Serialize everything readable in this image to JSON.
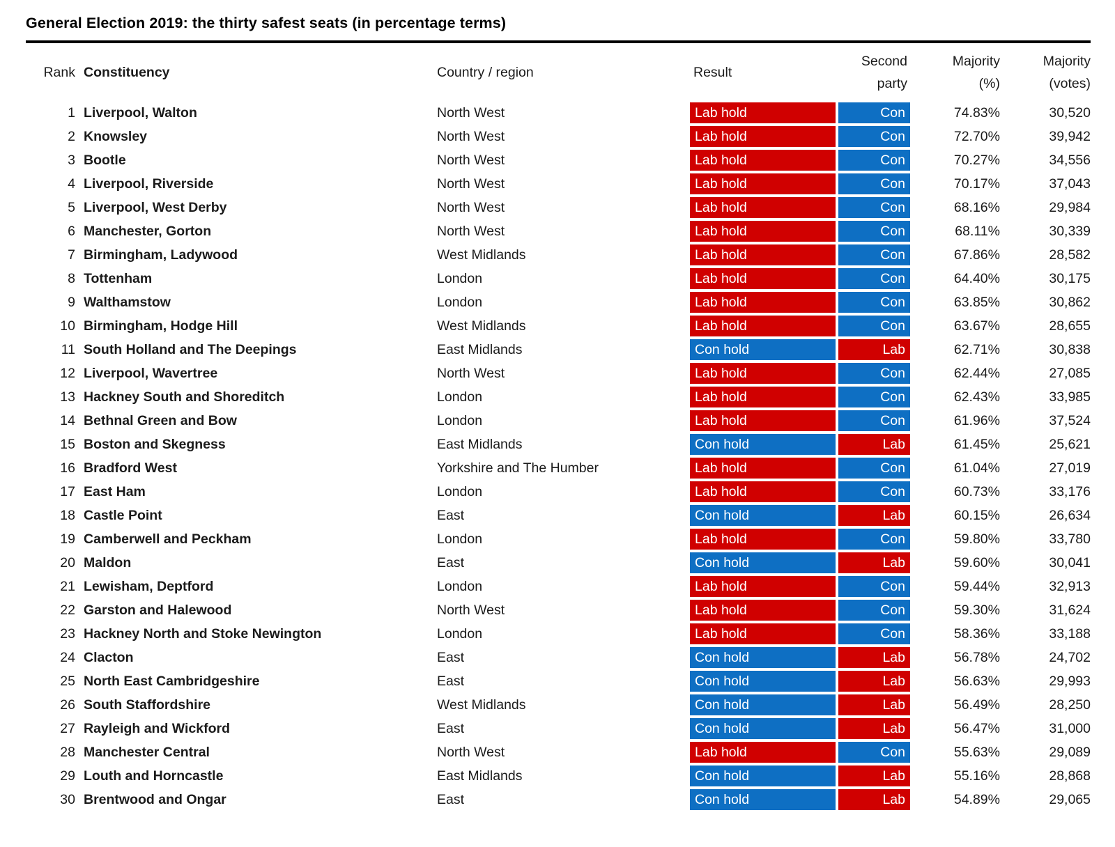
{
  "title": "General Election 2019: the thirty safest seats (in percentage terms)",
  "columns": {
    "rank": "Rank",
    "constituency": "Constituency",
    "region": "Country / region",
    "result": "Result",
    "second_l1": "Second",
    "second_l2": "party",
    "pct_l1": "Majority",
    "pct_l2": "(%)",
    "votes_l1": "Majority",
    "votes_l2": "(votes)"
  },
  "party_colors": {
    "lab": "#d00000",
    "con": "#0e6fc3",
    "cell_text": "#ffffff"
  },
  "chart_data": {
    "type": "table",
    "title": "General Election 2019: the thirty safest seats (in percentage terms)",
    "columns": [
      "Rank",
      "Constituency",
      "Country / region",
      "Result",
      "Second party",
      "Majority (%)",
      "Majority (votes)"
    ],
    "rows": [
      {
        "rank": "1",
        "constituency": "Liverpool, Walton",
        "region": "North West",
        "result": "Lab hold",
        "result_party": "lab",
        "second": "Con",
        "second_party": "con",
        "pct": "74.83%",
        "votes": "30,520"
      },
      {
        "rank": "2",
        "constituency": "Knowsley",
        "region": "North West",
        "result": "Lab hold",
        "result_party": "lab",
        "second": "Con",
        "second_party": "con",
        "pct": "72.70%",
        "votes": "39,942"
      },
      {
        "rank": "3",
        "constituency": "Bootle",
        "region": "North West",
        "result": "Lab hold",
        "result_party": "lab",
        "second": "Con",
        "second_party": "con",
        "pct": "70.27%",
        "votes": "34,556"
      },
      {
        "rank": "4",
        "constituency": "Liverpool, Riverside",
        "region": "North West",
        "result": "Lab hold",
        "result_party": "lab",
        "second": "Con",
        "second_party": "con",
        "pct": "70.17%",
        "votes": "37,043"
      },
      {
        "rank": "5",
        "constituency": "Liverpool, West Derby",
        "region": "North West",
        "result": "Lab hold",
        "result_party": "lab",
        "second": "Con",
        "second_party": "con",
        "pct": "68.16%",
        "votes": "29,984"
      },
      {
        "rank": "6",
        "constituency": "Manchester, Gorton",
        "region": "North West",
        "result": "Lab hold",
        "result_party": "lab",
        "second": "Con",
        "second_party": "con",
        "pct": "68.11%",
        "votes": "30,339"
      },
      {
        "rank": "7",
        "constituency": "Birmingham, Ladywood",
        "region": "West Midlands",
        "result": "Lab hold",
        "result_party": "lab",
        "second": "Con",
        "second_party": "con",
        "pct": "67.86%",
        "votes": "28,582"
      },
      {
        "rank": "8",
        "constituency": "Tottenham",
        "region": "London",
        "result": "Lab hold",
        "result_party": "lab",
        "second": "Con",
        "second_party": "con",
        "pct": "64.40%",
        "votes": "30,175"
      },
      {
        "rank": "9",
        "constituency": "Walthamstow",
        "region": "London",
        "result": "Lab hold",
        "result_party": "lab",
        "second": "Con",
        "second_party": "con",
        "pct": "63.85%",
        "votes": "30,862"
      },
      {
        "rank": "10",
        "constituency": "Birmingham, Hodge Hill",
        "region": "West Midlands",
        "result": "Lab hold",
        "result_party": "lab",
        "second": "Con",
        "second_party": "con",
        "pct": "63.67%",
        "votes": "28,655"
      },
      {
        "rank": "11",
        "constituency": "South Holland and The Deepings",
        "region": "East Midlands",
        "result": "Con hold",
        "result_party": "con",
        "second": "Lab",
        "second_party": "lab",
        "pct": "62.71%",
        "votes": "30,838"
      },
      {
        "rank": "12",
        "constituency": "Liverpool, Wavertree",
        "region": "North West",
        "result": "Lab hold",
        "result_party": "lab",
        "second": "Con",
        "second_party": "con",
        "pct": "62.44%",
        "votes": "27,085"
      },
      {
        "rank": "13",
        "constituency": "Hackney South and Shoreditch",
        "region": "London",
        "result": "Lab hold",
        "result_party": "lab",
        "second": "Con",
        "second_party": "con",
        "pct": "62.43%",
        "votes": "33,985"
      },
      {
        "rank": "14",
        "constituency": "Bethnal Green and Bow",
        "region": "London",
        "result": "Lab hold",
        "result_party": "lab",
        "second": "Con",
        "second_party": "con",
        "pct": "61.96%",
        "votes": "37,524"
      },
      {
        "rank": "15",
        "constituency": "Boston and Skegness",
        "region": "East Midlands",
        "result": "Con hold",
        "result_party": "con",
        "second": "Lab",
        "second_party": "lab",
        "pct": "61.45%",
        "votes": "25,621"
      },
      {
        "rank": "16",
        "constituency": "Bradford West",
        "region": "Yorkshire and The Humber",
        "result": "Lab hold",
        "result_party": "lab",
        "second": "Con",
        "second_party": "con",
        "pct": "61.04%",
        "votes": "27,019"
      },
      {
        "rank": "17",
        "constituency": "East Ham",
        "region": "London",
        "result": "Lab hold",
        "result_party": "lab",
        "second": "Con",
        "second_party": "con",
        "pct": "60.73%",
        "votes": "33,176"
      },
      {
        "rank": "18",
        "constituency": "Castle Point",
        "region": "East",
        "result": "Con hold",
        "result_party": "con",
        "second": "Lab",
        "second_party": "lab",
        "pct": "60.15%",
        "votes": "26,634"
      },
      {
        "rank": "19",
        "constituency": "Camberwell and Peckham",
        "region": "London",
        "result": "Lab hold",
        "result_party": "lab",
        "second": "Con",
        "second_party": "con",
        "pct": "59.80%",
        "votes": "33,780"
      },
      {
        "rank": "20",
        "constituency": "Maldon",
        "region": "East",
        "result": "Con hold",
        "result_party": "con",
        "second": "Lab",
        "second_party": "lab",
        "pct": "59.60%",
        "votes": "30,041"
      },
      {
        "rank": "21",
        "constituency": "Lewisham, Deptford",
        "region": "London",
        "result": "Lab hold",
        "result_party": "lab",
        "second": "Con",
        "second_party": "con",
        "pct": "59.44%",
        "votes": "32,913"
      },
      {
        "rank": "22",
        "constituency": "Garston and Halewood",
        "region": "North West",
        "result": "Lab hold",
        "result_party": "lab",
        "second": "Con",
        "second_party": "con",
        "pct": "59.30%",
        "votes": "31,624"
      },
      {
        "rank": "23",
        "constituency": "Hackney North and Stoke Newington",
        "region": "London",
        "result": "Lab hold",
        "result_party": "lab",
        "second": "Con",
        "second_party": "con",
        "pct": "58.36%",
        "votes": "33,188"
      },
      {
        "rank": "24",
        "constituency": "Clacton",
        "region": "East",
        "result": "Con hold",
        "result_party": "con",
        "second": "Lab",
        "second_party": "lab",
        "pct": "56.78%",
        "votes": "24,702"
      },
      {
        "rank": "25",
        "constituency": "North East Cambridgeshire",
        "region": "East",
        "result": "Con hold",
        "result_party": "con",
        "second": "Lab",
        "second_party": "lab",
        "pct": "56.63%",
        "votes": "29,993"
      },
      {
        "rank": "26",
        "constituency": "South Staffordshire",
        "region": "West Midlands",
        "result": "Con hold",
        "result_party": "con",
        "second": "Lab",
        "second_party": "lab",
        "pct": "56.49%",
        "votes": "28,250"
      },
      {
        "rank": "27",
        "constituency": "Rayleigh and Wickford",
        "region": "East",
        "result": "Con hold",
        "result_party": "con",
        "second": "Lab",
        "second_party": "lab",
        "pct": "56.47%",
        "votes": "31,000"
      },
      {
        "rank": "28",
        "constituency": "Manchester Central",
        "region": "North West",
        "result": "Lab hold",
        "result_party": "lab",
        "second": "Con",
        "second_party": "con",
        "pct": "55.63%",
        "votes": "29,089"
      },
      {
        "rank": "29",
        "constituency": "Louth and Horncastle",
        "region": "East Midlands",
        "result": "Con hold",
        "result_party": "con",
        "second": "Lab",
        "second_party": "lab",
        "pct": "55.16%",
        "votes": "28,868"
      },
      {
        "rank": "30",
        "constituency": "Brentwood and Ongar",
        "region": "East",
        "result": "Con hold",
        "result_party": "con",
        "second": "Lab",
        "second_party": "lab",
        "pct": "54.89%",
        "votes": "29,065"
      }
    ]
  }
}
